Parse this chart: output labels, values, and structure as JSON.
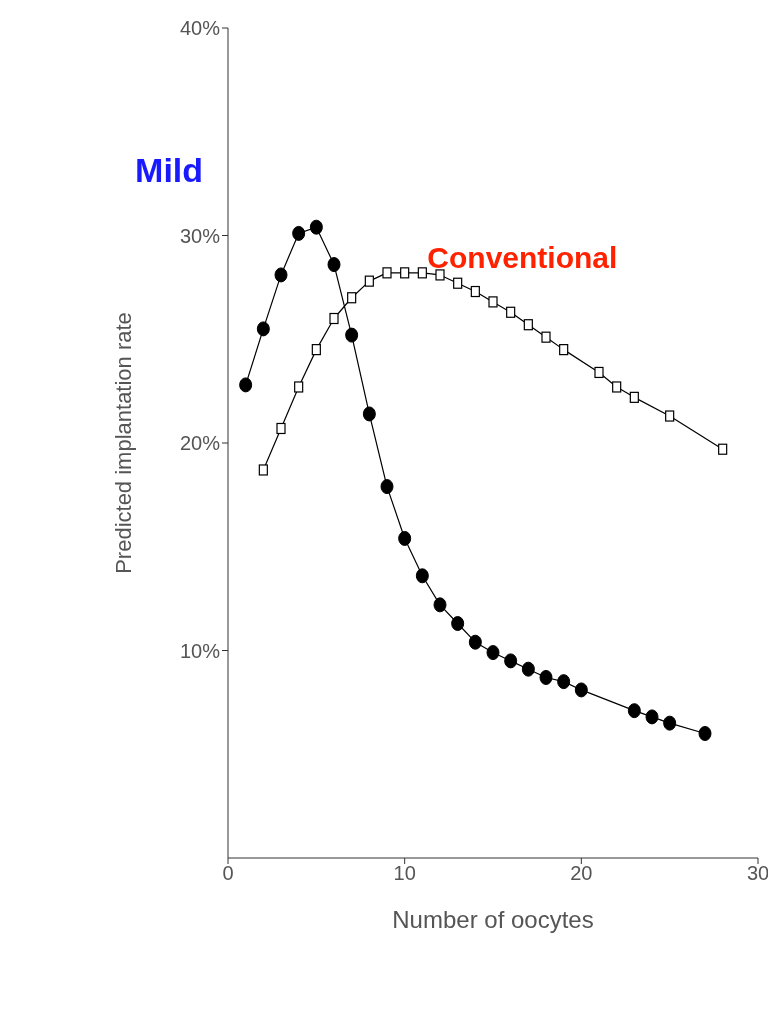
{
  "chart_data": {
    "type": "line",
    "xlabel": "Number of oocytes",
    "ylabel": "Predicted implantation rate",
    "xlim": [
      0,
      30
    ],
    "xticks": [
      0,
      10,
      20,
      30
    ],
    "ylim": [
      0,
      40
    ],
    "yticks": [
      {
        "value": 10,
        "label": "10%"
      },
      {
        "value": 20,
        "label": "20%"
      },
      {
        "value": 30,
        "label": "30%"
      },
      {
        "value": 40,
        "label": "40%"
      }
    ],
    "grid": false,
    "series": [
      {
        "name": "Mild",
        "color": "#000000",
        "marker": "circle",
        "x": [
          1,
          2,
          3,
          4,
          5,
          6,
          7,
          8,
          9,
          10,
          11,
          12,
          13,
          14,
          15,
          16,
          17,
          18,
          19,
          20,
          23,
          24,
          25,
          27
        ],
        "values": [
          22.8,
          25.5,
          28.1,
          30.1,
          30.4,
          28.6,
          25.2,
          21.4,
          17.9,
          15.4,
          13.6,
          12.2,
          11.3,
          10.4,
          9.9,
          9.5,
          9.1,
          8.7,
          8.5,
          8.1,
          7.1,
          6.8,
          6.5,
          6.0
        ]
      },
      {
        "name": "Conventional",
        "color": "#000000",
        "marker": "square",
        "x": [
          2,
          3,
          4,
          5,
          6,
          7,
          8,
          9,
          10,
          11,
          12,
          13,
          14,
          15,
          16,
          17,
          18,
          19,
          21,
          22,
          23,
          25,
          28
        ],
        "values": [
          18.7,
          20.7,
          22.7,
          24.5,
          26.0,
          27.0,
          27.8,
          28.2,
          28.2,
          28.2,
          28.1,
          27.7,
          27.3,
          26.8,
          26.3,
          25.7,
          25.1,
          24.5,
          23.4,
          22.7,
          22.2,
          21.3,
          19.7
        ]
      }
    ]
  }
}
